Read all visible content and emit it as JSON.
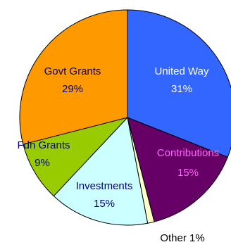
{
  "chart_data": {
    "type": "pie",
    "title": "",
    "start": "12 o'clock",
    "direction": "clockwise",
    "slices": [
      {
        "label": "United Way",
        "value": 31,
        "value_label": "31%",
        "color": "#3366ff",
        "text_color": "#ffffff"
      },
      {
        "label": "Contributions",
        "value": 15,
        "value_label": "15%",
        "color": "#660066",
        "text_color": "#ff66ff"
      },
      {
        "label": "Other",
        "value": 1,
        "value_label": "Other 1%",
        "color": "#ffffcc",
        "text_color": "#000000"
      },
      {
        "label": "Investments",
        "value": 15,
        "value_label": "15%",
        "color": "#ccffff",
        "text_color": "#000080"
      },
      {
        "label": "Fdn Grants",
        "value": 9,
        "value_label": "9%",
        "color": "#99cc00",
        "text_color": "#000080"
      },
      {
        "label": "Govt Grants",
        "value": 29,
        "value_label": "29%",
        "color": "#ff9900",
        "text_color": "#000080"
      }
    ]
  }
}
